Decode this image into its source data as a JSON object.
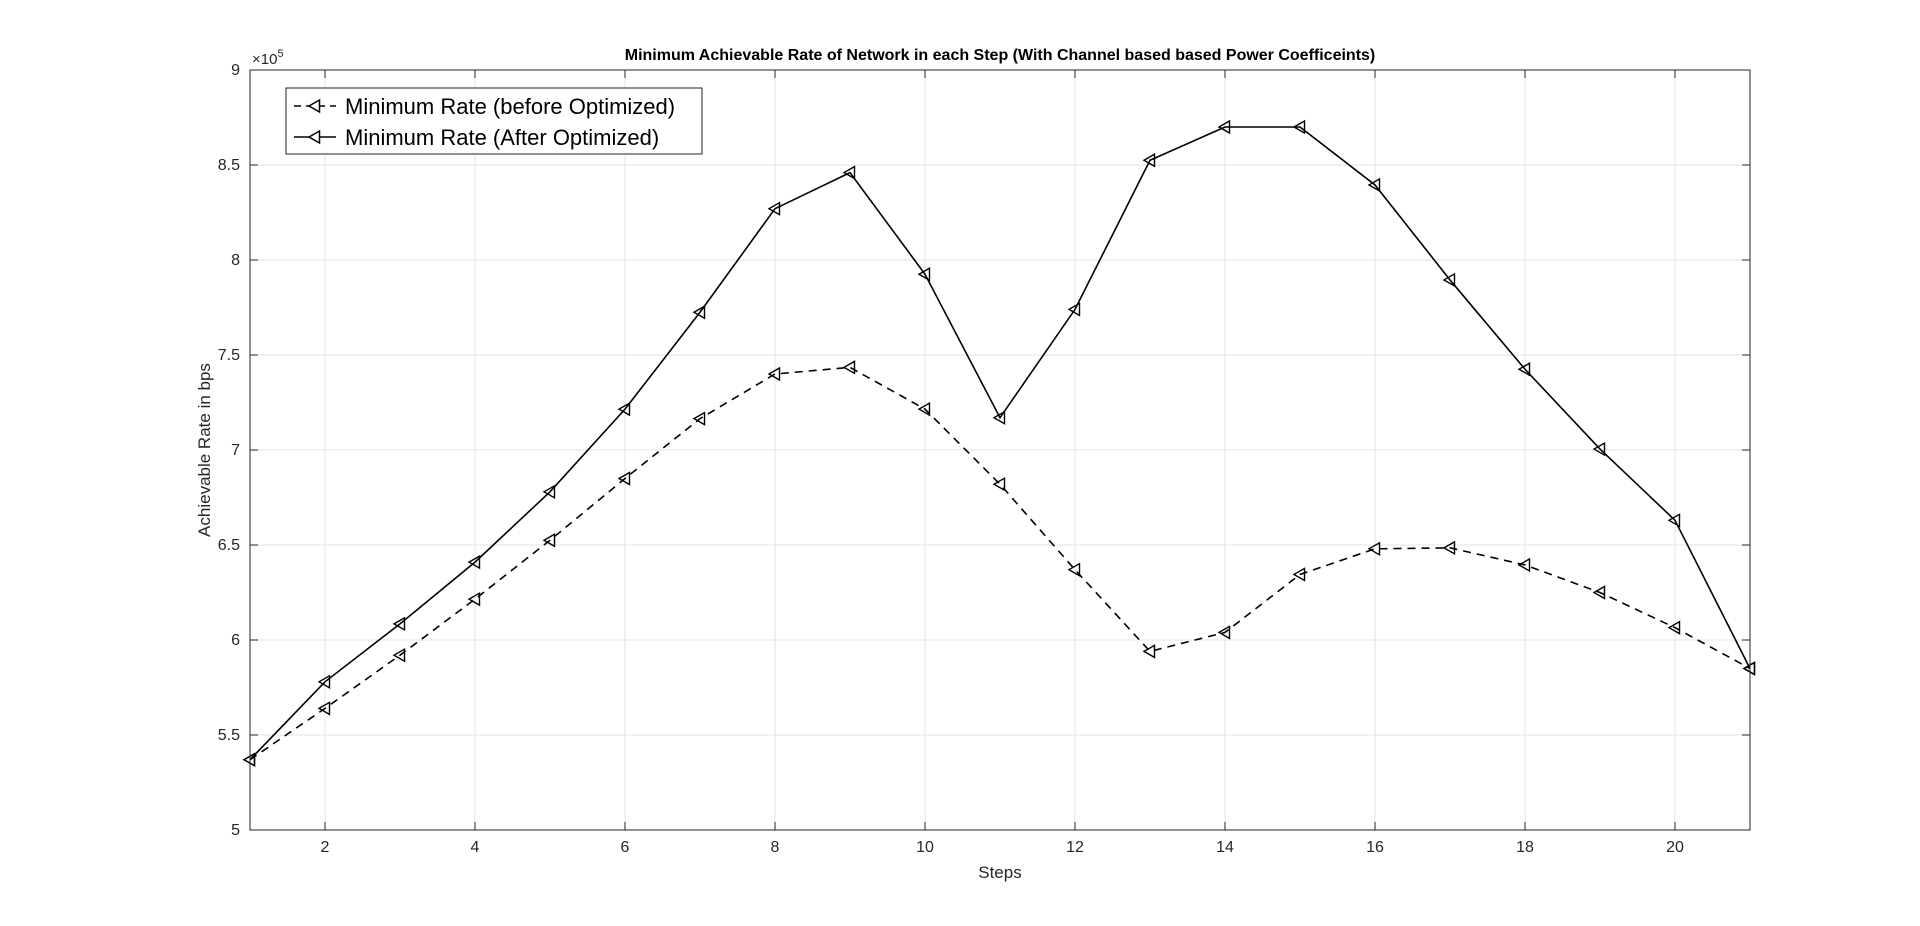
{
  "chart_data": {
    "type": "line",
    "title": "Minimum Achievable Rate of Network in each Step (With Channel based based Power Coefficeints)",
    "xlabel": "Steps",
    "ylabel": "Achievable Rate in bps",
    "xlim": [
      1,
      21
    ],
    "ylim": [
      500000,
      900000
    ],
    "xticks": [
      2,
      4,
      6,
      8,
      10,
      12,
      14,
      16,
      18,
      20
    ],
    "yticks": [
      500000,
      550000,
      600000,
      650000,
      700000,
      750000,
      800000,
      850000,
      900000
    ],
    "ytick_labels": [
      "5",
      "5.5",
      "6",
      "6.5",
      "7",
      "7.5",
      "8",
      "8.5",
      "9"
    ],
    "y_exponent": {
      "base": "×10",
      "power": "5"
    },
    "grid": true,
    "legend_position": "top-left",
    "x": [
      1,
      2,
      3,
      4,
      5,
      6,
      7,
      8,
      9,
      10,
      11,
      12,
      13,
      14,
      15,
      16,
      17,
      18,
      19,
      20,
      21
    ],
    "series": [
      {
        "name": "Minimum Rate (before Optimized)",
        "line_style": "dashed",
        "marker": "triangle-left",
        "color": "#000000",
        "values": [
          537000,
          564000,
          592000,
          621500,
          652500,
          685000,
          716500,
          740000,
          743500,
          721500,
          682000,
          637000,
          594000,
          604000,
          634500,
          648000,
          648500,
          639500,
          625000,
          606500,
          585000
        ]
      },
      {
        "name": "Minimum Rate (After Optimized)",
        "line_style": "solid",
        "marker": "triangle-left",
        "color": "#000000",
        "values": [
          537000,
          578000,
          608500,
          641000,
          678000,
          721500,
          772500,
          827000,
          846000,
          792500,
          717000,
          774000,
          852500,
          870000,
          870000,
          839500,
          789500,
          742500,
          700500,
          663000,
          585000
        ]
      }
    ]
  }
}
